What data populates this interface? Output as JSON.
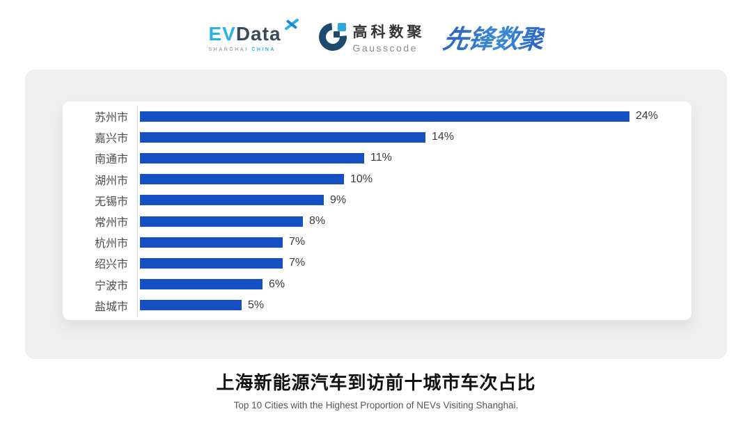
{
  "header": {
    "evdata": {
      "ev": "EV",
      "data": "Data",
      "sub_left": "SHANGHAI",
      "sub_right": "CHINA",
      "ev_color": "#29B0E6",
      "data_color": "#3A4A5C"
    },
    "gausscode": {
      "cn": "高科数聚",
      "en": "Gausscode",
      "mark_navy": "#1C4A6E",
      "mark_blue": "#2FA8E0"
    },
    "pioneer": {
      "text": "先锋数聚",
      "color": "#2E6FC4"
    }
  },
  "chart_data": {
    "type": "bar",
    "orientation": "horizontal",
    "categories": [
      "苏州市",
      "嘉兴市",
      "南通市",
      "湖州市",
      "无锡市",
      "常州市",
      "杭州市",
      "绍兴市",
      "宁波市",
      "盐城市"
    ],
    "values": [
      24,
      14,
      11,
      10,
      9,
      8,
      7,
      7,
      6,
      5
    ],
    "value_labels": [
      "24%",
      "14%",
      "11%",
      "10%",
      "9%",
      "8%",
      "7%",
      "7%",
      "6%",
      "5%"
    ],
    "value_suffix": "%",
    "xlim": [
      0,
      27
    ],
    "grid": false,
    "legend": "none",
    "bar_color": "#1450C2",
    "title": "上海新能源汽车到访前十城市车次占比",
    "subtitle": "Top 10 Cities with the Highest Proportion of  NEVs Visiting Shanghai.",
    "xlabel": "",
    "ylabel": ""
  },
  "footer": {
    "title": "上海新能源汽车到访前十城市车次占比",
    "subtitle": "Top 10 Cities with the Highest Proportion of  NEVs Visiting Shanghai."
  }
}
